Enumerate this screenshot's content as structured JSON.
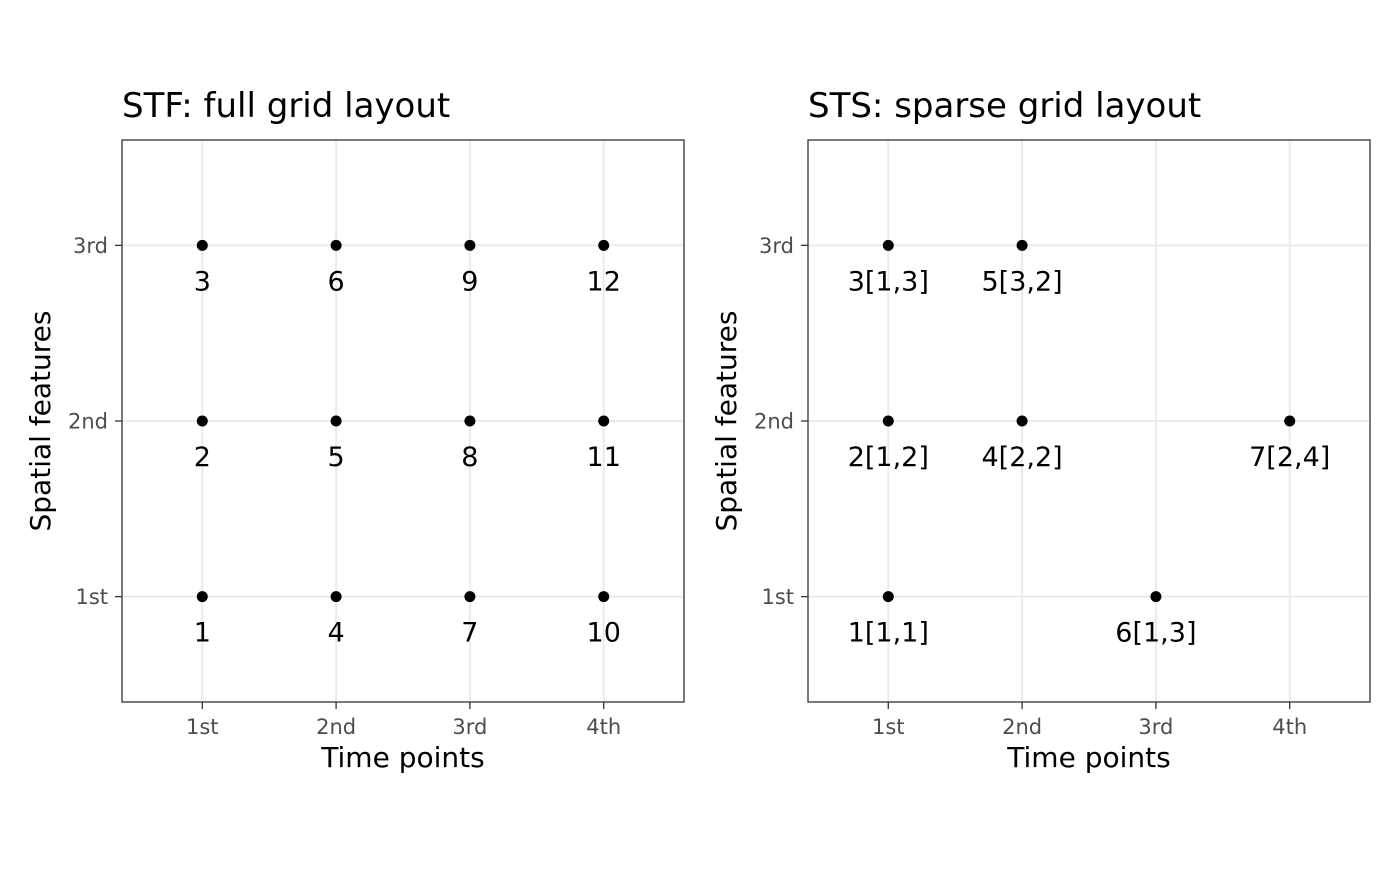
{
  "chart_data": [
    {
      "type": "scatter",
      "title": "STF: full grid layout",
      "xlabel": "Time points",
      "ylabel": "Spatial features",
      "x_categories": [
        "1st",
        "2nd",
        "3rd",
        "4th"
      ],
      "y_categories": [
        "1st",
        "2nd",
        "3rd"
      ],
      "grid": true,
      "points": [
        {
          "x": "1st",
          "y": "1st",
          "label": "1"
        },
        {
          "x": "1st",
          "y": "2nd",
          "label": "2"
        },
        {
          "x": "1st",
          "y": "3rd",
          "label": "3"
        },
        {
          "x": "2nd",
          "y": "1st",
          "label": "4"
        },
        {
          "x": "2nd",
          "y": "2nd",
          "label": "5"
        },
        {
          "x": "2nd",
          "y": "3rd",
          "label": "6"
        },
        {
          "x": "3rd",
          "y": "1st",
          "label": "7"
        },
        {
          "x": "3rd",
          "y": "2nd",
          "label": "8"
        },
        {
          "x": "3rd",
          "y": "3rd",
          "label": "9"
        },
        {
          "x": "4th",
          "y": "1st",
          "label": "10"
        },
        {
          "x": "4th",
          "y": "2nd",
          "label": "11"
        },
        {
          "x": "4th",
          "y": "3rd",
          "label": "12"
        }
      ]
    },
    {
      "type": "scatter",
      "title": "STS: sparse grid layout",
      "xlabel": "Time points",
      "ylabel": "Spatial features",
      "x_categories": [
        "1st",
        "2nd",
        "3rd",
        "4th"
      ],
      "y_categories": [
        "1st",
        "2nd",
        "3rd"
      ],
      "grid": true,
      "points": [
        {
          "x": "1st",
          "y": "1st",
          "label": "1[1,1]"
        },
        {
          "x": "1st",
          "y": "2nd",
          "label": "2[1,2]"
        },
        {
          "x": "1st",
          "y": "3rd",
          "label": "3[1,3]"
        },
        {
          "x": "2nd",
          "y": "2nd",
          "label": "4[2,2]"
        },
        {
          "x": "2nd",
          "y": "3rd",
          "label": "5[3,2]"
        },
        {
          "x": "3rd",
          "y": "1st",
          "label": "6[1,3]"
        },
        {
          "x": "4th",
          "y": "2nd",
          "label": "7[2,4]"
        }
      ]
    }
  ],
  "colors": {
    "point": "#000000",
    "grid": "#ebebeb",
    "panel_border": "#333333",
    "tick_text": "#4d4d4d"
  }
}
